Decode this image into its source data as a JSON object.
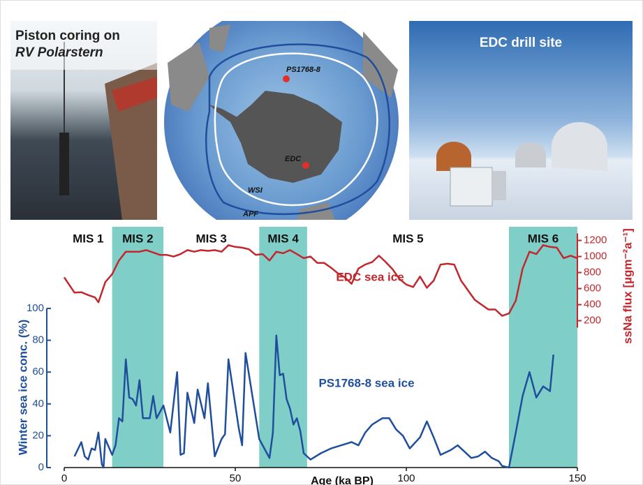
{
  "photos": {
    "left_title": "Piston coring on",
    "left_subtitle": "RV Polarstern",
    "right_title": "EDC drill site"
  },
  "map": {
    "labels": [
      "PS1768-8",
      "EDC",
      "WSI",
      "APF"
    ]
  },
  "chart_data": {
    "type": "line",
    "x_label": "Age (ka BP)",
    "y_label": "Winter sea ice conc. (%)",
    "y2_label": "ssNa flux [µgm⁻²a⁻¹]",
    "xlim": [
      0,
      150
    ],
    "xticks": [
      0,
      50,
      100,
      150
    ],
    "ylim": [
      0,
      151.3
    ],
    "yticks": [
      0,
      20,
      40,
      60,
      80,
      100
    ],
    "y2lim": [
      -1630,
      1370
    ],
    "y2ticks": [
      200,
      400,
      600,
      800,
      1000,
      1200
    ],
    "mis": [
      {
        "name": "MIS 1",
        "start": 0,
        "end": 14,
        "shaded": false
      },
      {
        "name": "MIS 2",
        "start": 14,
        "end": 29,
        "shaded": true
      },
      {
        "name": "MIS 3",
        "start": 29,
        "end": 57,
        "shaded": false
      },
      {
        "name": "MIS 4",
        "start": 57,
        "end": 71,
        "shaded": true
      },
      {
        "name": "MIS 5",
        "start": 71,
        "end": 130,
        "shaded": false
      },
      {
        "name": "MIS 6",
        "start": 130,
        "end": 150,
        "shaded": true
      }
    ],
    "band_color": "#7fcfc8",
    "series": [
      {
        "name": "EDC sea ice",
        "color": "#c1272d",
        "axis": "y2",
        "x": [
          0,
          3,
          5,
          7,
          9,
          10,
          12,
          14,
          16,
          18,
          20,
          22,
          24,
          26,
          28,
          30,
          32,
          34,
          36,
          38,
          40,
          42,
          44,
          46,
          48,
          50,
          52,
          54,
          56,
          58,
          60,
          62,
          64,
          66,
          68,
          70,
          72,
          74,
          76,
          78,
          80,
          82,
          84,
          86,
          88,
          90,
          92,
          94,
          96,
          98,
          100,
          102,
          104,
          106,
          108,
          110,
          112,
          114,
          116,
          118,
          120,
          122,
          124,
          126,
          128,
          130,
          132,
          134,
          136,
          138,
          140,
          142,
          144,
          146,
          148,
          150
        ],
        "values": [
          740,
          550,
          555,
          520,
          490,
          430,
          680,
          780,
          950,
          1060,
          1060,
          1060,
          1080,
          1050,
          1020,
          1020,
          1000,
          1030,
          1080,
          1060,
          1080,
          1070,
          1080,
          1060,
          1140,
          1120,
          1110,
          1090,
          1020,
          1030,
          950,
          1060,
          1040,
          1080,
          1030,
          980,
          1000,
          920,
          920,
          860,
          790,
          740,
          660,
          850,
          900,
          930,
          1010,
          930,
          840,
          720,
          650,
          620,
          750,
          610,
          700,
          900,
          910,
          900,
          700,
          580,
          460,
          400,
          340,
          340,
          260,
          290,
          450,
          850,
          1060,
          1030,
          1140,
          1120,
          1110,
          980,
          1010,
          980
        ]
      },
      {
        "name": "PS1768-8 sea ice",
        "color": "#1f4e9c",
        "axis": "y",
        "x": [
          3,
          5,
          6,
          7,
          8,
          9,
          10,
          11,
          11.5,
          12,
          13,
          14,
          15,
          16,
          17,
          18,
          19,
          20,
          21,
          22,
          23,
          25,
          26,
          27,
          29,
          31,
          33,
          34,
          35,
          36,
          38,
          39,
          41,
          42,
          44,
          46,
          47,
          48,
          51,
          52,
          53,
          55,
          57,
          58,
          60,
          61,
          62,
          63,
          64,
          65,
          66,
          67,
          68,
          69,
          70,
          72,
          75,
          78,
          81,
          84,
          86,
          88,
          90,
          93,
          95,
          97,
          99,
          101,
          104,
          106,
          108,
          110,
          113,
          115,
          117,
          119,
          121,
          123,
          125,
          127,
          128,
          130,
          132,
          134,
          136,
          138,
          140,
          142,
          143
        ],
        "values": [
          7,
          16,
          7,
          5,
          12,
          11,
          22,
          2,
          0,
          18,
          13,
          8,
          14,
          31,
          29,
          68,
          44,
          43,
          39,
          55,
          31,
          31,
          45,
          31,
          39,
          22,
          60,
          8,
          9,
          47,
          28,
          49,
          31,
          53,
          7,
          18,
          21,
          68,
          25,
          14,
          72,
          45,
          18,
          14,
          6,
          22,
          83,
          58,
          59,
          43,
          37,
          27,
          31,
          23,
          9,
          5,
          9,
          12,
          14,
          16,
          14,
          22,
          27,
          31,
          31,
          24,
          20,
          12,
          19,
          29,
          19,
          8,
          11,
          14,
          10,
          6,
          7,
          10,
          6,
          4,
          1,
          0,
          22,
          45,
          60,
          44,
          51,
          48,
          71
        ]
      }
    ]
  }
}
